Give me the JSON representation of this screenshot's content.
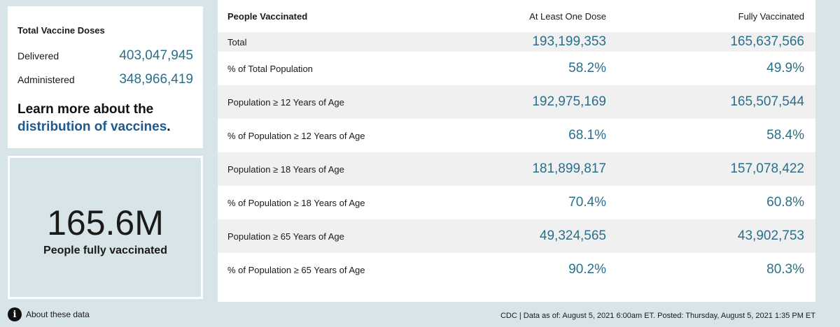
{
  "doses": {
    "title": "Total Vaccine Doses",
    "delivered_label": "Delivered",
    "delivered_value": "403,047,945",
    "administered_label": "Administered",
    "administered_value": "348,966,419",
    "learn_prefix": "Learn more about the",
    "learn_link": "distribution of vaccines",
    "learn_suffix": "."
  },
  "summary": {
    "value": "165.6M",
    "caption": "People fully vaccinated"
  },
  "table": {
    "headers": [
      "People Vaccinated",
      "At Least One Dose",
      "Fully Vaccinated"
    ],
    "rows": [
      {
        "label": "Total",
        "one_dose": "193,199,353",
        "fully": "165,637,566"
      },
      {
        "label": "% of Total Population",
        "one_dose": "58.2%",
        "fully": "49.9%"
      },
      {
        "label": "Population ≥ 12 Years of Age",
        "one_dose": "192,975,169",
        "fully": "165,507,544"
      },
      {
        "label": "% of Population ≥ 12 Years of Age",
        "one_dose": "68.1%",
        "fully": "58.4%"
      },
      {
        "label": "Population ≥ 18 Years of Age",
        "one_dose": "181,899,817",
        "fully": "157,078,422"
      },
      {
        "label": "% of Population ≥ 18 Years of Age",
        "one_dose": "70.4%",
        "fully": "60.8%"
      },
      {
        "label": "Population ≥ 65 Years of Age",
        "one_dose": "49,324,565",
        "fully": "43,902,753"
      },
      {
        "label": "% of Population ≥ 65 Years of Age",
        "one_dose": "90.2%",
        "fully": "80.3%"
      }
    ]
  },
  "about_label": "About these data",
  "footer_text": "CDC | Data as of: August 5, 2021 6:00am ET. Posted: Thursday, August 5, 2021 1:35 PM ET",
  "colors": {
    "accent_value": "#2a6f8a",
    "link": "#1f5a8c",
    "background": "#d7e4e8"
  },
  "icons": {
    "about": "info-icon"
  }
}
